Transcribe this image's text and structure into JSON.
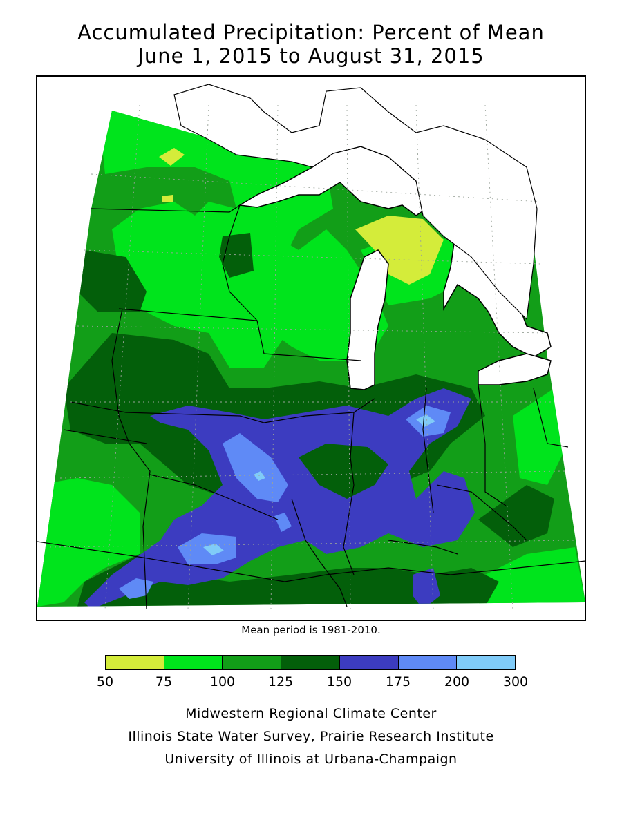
{
  "title": {
    "line1": "Accumulated Precipitation: Percent of Mean",
    "line2": "June 1, 2015 to August 31, 2015"
  },
  "mean_note": "Mean period is 1981-2010.",
  "legend": {
    "colors": [
      "#d4ec3a",
      "#00e41c",
      "#129e18",
      "#035f0a",
      "#3c3cc0",
      "#5f8af6",
      "#80cbf8"
    ],
    "ticks": [
      "50",
      "75",
      "100",
      "125",
      "150",
      "175",
      "200",
      "300"
    ]
  },
  "credits": {
    "line1": "Midwestern Regional Climate Center",
    "line2": "Illinois State Water Survey, Prairie Research Institute",
    "line3": "University of Illinois at Urbana-Champaign"
  },
  "map": {
    "region": "Midwestern United States",
    "colors": {
      "lt75": "#d4ec3a",
      "p75_100": "#00e41c",
      "p100_125": "#129e18",
      "p125_150": "#035f0a",
      "p150_175": "#3c3cc0",
      "p175_200": "#5f8af6",
      "p200_300": "#80cbf8",
      "lake": "#ffffff",
      "border": "#000000",
      "grid": "#9aa39a"
    }
  }
}
